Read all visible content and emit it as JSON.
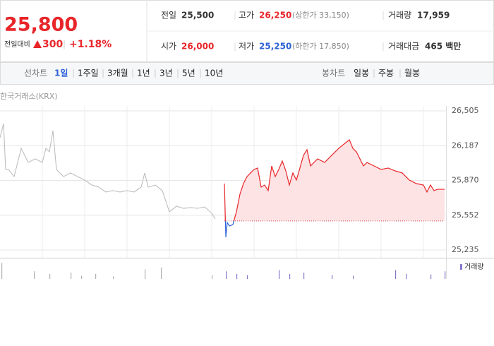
{
  "quote": {
    "price": "25,800",
    "change_label": "전일대비",
    "change": "300",
    "change_pct": "+1.18%"
  },
  "stats": [
    {
      "label": "전일",
      "value": "25,500"
    },
    {
      "label": "고가",
      "value": "26,250",
      "note": "(상한가 33,150)"
    },
    {
      "label": "거래량",
      "value": "17,959"
    },
    {
      "label": "시가",
      "value": "26,000"
    },
    {
      "label": "저가",
      "value": "25,250",
      "note": "(하한가 17,850)"
    },
    {
      "label": "거래대금",
      "value": "465 백만"
    }
  ],
  "tabs": {
    "line_label": "선차트",
    "line": [
      "1일",
      "1주일",
      "3개월",
      "1년",
      "3년",
      "5년",
      "10년"
    ],
    "candle_label": "봉차트",
    "candle": [
      "일봉",
      "주봉",
      "월봉"
    ]
  },
  "chart_data": {
    "type": "line",
    "source": "한국거래소(KRX)",
    "xlim": [
      0,
      630
    ],
    "ylim": [
      25235,
      26505
    ],
    "yticks": [
      {
        "value": 26505,
        "label": "26,505"
      },
      {
        "value": 26187,
        "label": "26,187"
      },
      {
        "value": 25870,
        "label": "25,870"
      },
      {
        "value": 25552,
        "label": "25,552"
      },
      {
        "value": 25235,
        "label": "25,235"
      }
    ],
    "baseline": 25500,
    "up_color": "#e8262a",
    "down_color": "#2e63d6",
    "area_color": "#fde3e4",
    "series": [
      {
        "color": "#b8b8b8",
        "x": [
          0,
          5,
          8,
          12,
          20,
          30,
          40,
          50,
          60,
          65,
          70,
          75,
          80,
          90,
          100,
          110,
          120,
          130,
          140,
          150,
          160,
          170,
          180,
          190,
          200,
          205,
          210,
          220,
          230,
          240,
          250,
          260,
          270,
          280,
          290,
          300,
          305
        ],
        "values": [
          26260,
          26389,
          25970,
          25970,
          25905,
          26163,
          26034,
          26067,
          26034,
          26163,
          26131,
          26324,
          25970,
          25905,
          25938,
          25905,
          25873,
          25828,
          25809,
          25764,
          25777,
          25764,
          25777,
          25764,
          25809,
          25938,
          25809,
          25828,
          25777,
          25583,
          25635,
          25615,
          25622,
          25615,
          25628,
          25570,
          25519
        ]
      },
      {
        "color": "#e8262a",
        "x": [
          318,
          320,
          322,
          325,
          330,
          335,
          340,
          345,
          350,
          355,
          360,
          365,
          370,
          375,
          380,
          385,
          390,
          395,
          400,
          405,
          410,
          415,
          420,
          425,
          430,
          435,
          440,
          450,
          460,
          470,
          480,
          490,
          495,
          500,
          505,
          510,
          515,
          520,
          530,
          540,
          550,
          560,
          570,
          580,
          590,
          600,
          605,
          610,
          615,
          620,
          630
        ],
        "values": [
          25841,
          25351,
          25486,
          25454,
          25467,
          25583,
          25744,
          25841,
          25905,
          25938,
          25970,
          25983,
          25809,
          25828,
          25777,
          26002,
          25905,
          25970,
          26047,
          25957,
          25828,
          25938,
          25873,
          25983,
          26099,
          26150,
          26002,
          26067,
          26034,
          26099,
          26163,
          26215,
          26241,
          26163,
          26131,
          26067,
          26002,
          26034,
          26002,
          25970,
          25983,
          25957,
          25938,
          25873,
          25841,
          25828,
          25764,
          25828,
          25777,
          25789,
          25789
        ]
      }
    ],
    "volume_label": "거래량",
    "volume_lim": [
      0,
      30
    ],
    "volume": [
      {
        "color": "#b0b0b0",
        "x": [
          2,
          48,
          70,
          100,
          115,
          135,
          160,
          205,
          228,
          300
        ],
        "values": [
          25,
          12,
          8,
          10,
          5,
          8,
          4,
          15,
          18,
          6
        ]
      },
      {
        "color": "#8877cc",
        "x": [
          320,
          335,
          350,
          395,
          410,
          430,
          470,
          500,
          560,
          575,
          610,
          630
        ],
        "values": [
          12,
          8,
          6,
          14,
          8,
          10,
          6,
          5,
          14,
          8,
          7,
          12
        ]
      }
    ]
  }
}
